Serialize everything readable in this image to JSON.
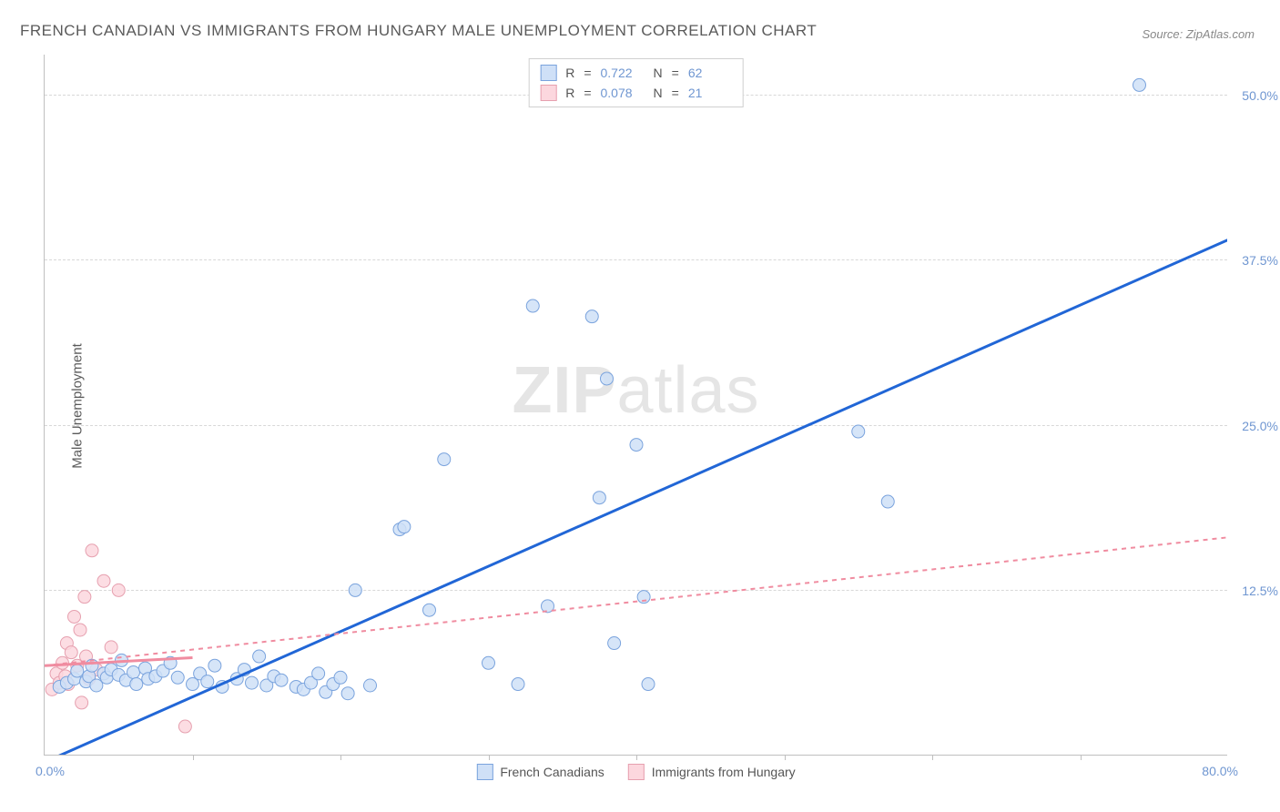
{
  "title": "FRENCH CANADIAN VS IMMIGRANTS FROM HUNGARY MALE UNEMPLOYMENT CORRELATION CHART",
  "source": "Source: ZipAtlas.com",
  "ylabel": "Male Unemployment",
  "watermark_zip": "ZIP",
  "watermark_atlas": "atlas",
  "chart": {
    "type": "scatter",
    "xlim": [
      0,
      80
    ],
    "ylim": [
      0,
      53
    ],
    "x_tick_min": "0.0%",
    "x_tick_max": "80.0%",
    "x_minor_ticks": [
      10,
      20,
      30,
      40,
      50,
      60,
      70
    ],
    "y_ticks": [
      {
        "v": 12.5,
        "label": "12.5%"
      },
      {
        "v": 25.0,
        "label": "25.0%"
      },
      {
        "v": 37.5,
        "label": "37.5%"
      },
      {
        "v": 50.0,
        "label": "50.0%"
      }
    ],
    "background_color": "#ffffff",
    "grid_color": "#d8d8d8",
    "axis_color": "#bfbfbf",
    "tick_label_color": "#6f96d1",
    "series": [
      {
        "name": "French Canadians",
        "marker_fill": "#cfe0f7",
        "marker_stroke": "#7aa3dd",
        "marker_radius": 7,
        "marker_opacity": 0.85,
        "line_color": "#2166d6",
        "line_width": 3,
        "line_dash": "none",
        "R": "0.722",
        "N": "62",
        "trend": {
          "x1": 0,
          "y1": -0.5,
          "x2": 80,
          "y2": 39
        },
        "points": [
          [
            1,
            5.2
          ],
          [
            1.5,
            5.5
          ],
          [
            2,
            5.8
          ],
          [
            2.2,
            6.4
          ],
          [
            2.8,
            5.6
          ],
          [
            3,
            6.0
          ],
          [
            3.2,
            6.8
          ],
          [
            3.5,
            5.3
          ],
          [
            4,
            6.2
          ],
          [
            4.2,
            5.9
          ],
          [
            4.5,
            6.5
          ],
          [
            5,
            6.1
          ],
          [
            5.2,
            7.2
          ],
          [
            5.5,
            5.7
          ],
          [
            6,
            6.3
          ],
          [
            6.2,
            5.4
          ],
          [
            6.8,
            6.6
          ],
          [
            7,
            5.8
          ],
          [
            7.5,
            6.0
          ],
          [
            8,
            6.4
          ],
          [
            8.5,
            7.0
          ],
          [
            9,
            5.9
          ],
          [
            10,
            5.4
          ],
          [
            10.5,
            6.2
          ],
          [
            11,
            5.6
          ],
          [
            11.5,
            6.8
          ],
          [
            12,
            5.2
          ],
          [
            13,
            5.8
          ],
          [
            13.5,
            6.5
          ],
          [
            14,
            5.5
          ],
          [
            14.5,
            7.5
          ],
          [
            15,
            5.3
          ],
          [
            15.5,
            6.0
          ],
          [
            16,
            5.7
          ],
          [
            17,
            5.2
          ],
          [
            17.5,
            5.0
          ],
          [
            18,
            5.5
          ],
          [
            18.5,
            6.2
          ],
          [
            19,
            4.8
          ],
          [
            19.5,
            5.4
          ],
          [
            20,
            5.9
          ],
          [
            20.5,
            4.7
          ],
          [
            21,
            12.5
          ],
          [
            22,
            5.3
          ],
          [
            24,
            17.1
          ],
          [
            24.3,
            17.3
          ],
          [
            26,
            11.0
          ],
          [
            27,
            22.4
          ],
          [
            30,
            7.0
          ],
          [
            32,
            5.4
          ],
          [
            33,
            34.0
          ],
          [
            34,
            11.3
          ],
          [
            37,
            33.2
          ],
          [
            37.5,
            19.5
          ],
          [
            38,
            28.5
          ],
          [
            40,
            23.5
          ],
          [
            38.5,
            8.5
          ],
          [
            40.5,
            12.0
          ],
          [
            40.8,
            5.4
          ],
          [
            55,
            24.5
          ],
          [
            57,
            19.2
          ],
          [
            74,
            50.7
          ]
        ]
      },
      {
        "name": "Immigrants from Hungary",
        "marker_fill": "#fcd7de",
        "marker_stroke": "#e6a0af",
        "marker_radius": 7,
        "marker_opacity": 0.85,
        "line_color": "#f08ca0",
        "line_width": 2,
        "line_dash": "5,5",
        "solid_segment": {
          "x1": 0,
          "y1": 6.8,
          "x2": 10,
          "y2": 7.4
        },
        "R": "0.078",
        "N": "21",
        "trend": {
          "x1": 0,
          "y1": 6.8,
          "x2": 80,
          "y2": 16.5
        },
        "points": [
          [
            0.5,
            5.0
          ],
          [
            0.8,
            6.2
          ],
          [
            1,
            5.5
          ],
          [
            1.2,
            7.0
          ],
          [
            1.4,
            6.0
          ],
          [
            1.5,
            8.5
          ],
          [
            1.6,
            5.4
          ],
          [
            1.8,
            7.8
          ],
          [
            2,
            10.5
          ],
          [
            2.2,
            6.8
          ],
          [
            2.4,
            9.5
          ],
          [
            2.5,
            4.0
          ],
          [
            2.7,
            12.0
          ],
          [
            2.8,
            7.5
          ],
          [
            3,
            5.8
          ],
          [
            3.2,
            15.5
          ],
          [
            3.5,
            6.5
          ],
          [
            4,
            13.2
          ],
          [
            4.5,
            8.2
          ],
          [
            5,
            12.5
          ],
          [
            9.5,
            2.2
          ]
        ]
      }
    ],
    "legend_top": {
      "R_label": "R",
      "N_label": "N",
      "equals": "="
    },
    "legend_bottom": [
      {
        "label": "French Canadians",
        "fill": "#cfe0f7",
        "stroke": "#7aa3dd"
      },
      {
        "label": "Immigrants from Hungary",
        "fill": "#fcd7de",
        "stroke": "#e6a0af"
      }
    ]
  }
}
